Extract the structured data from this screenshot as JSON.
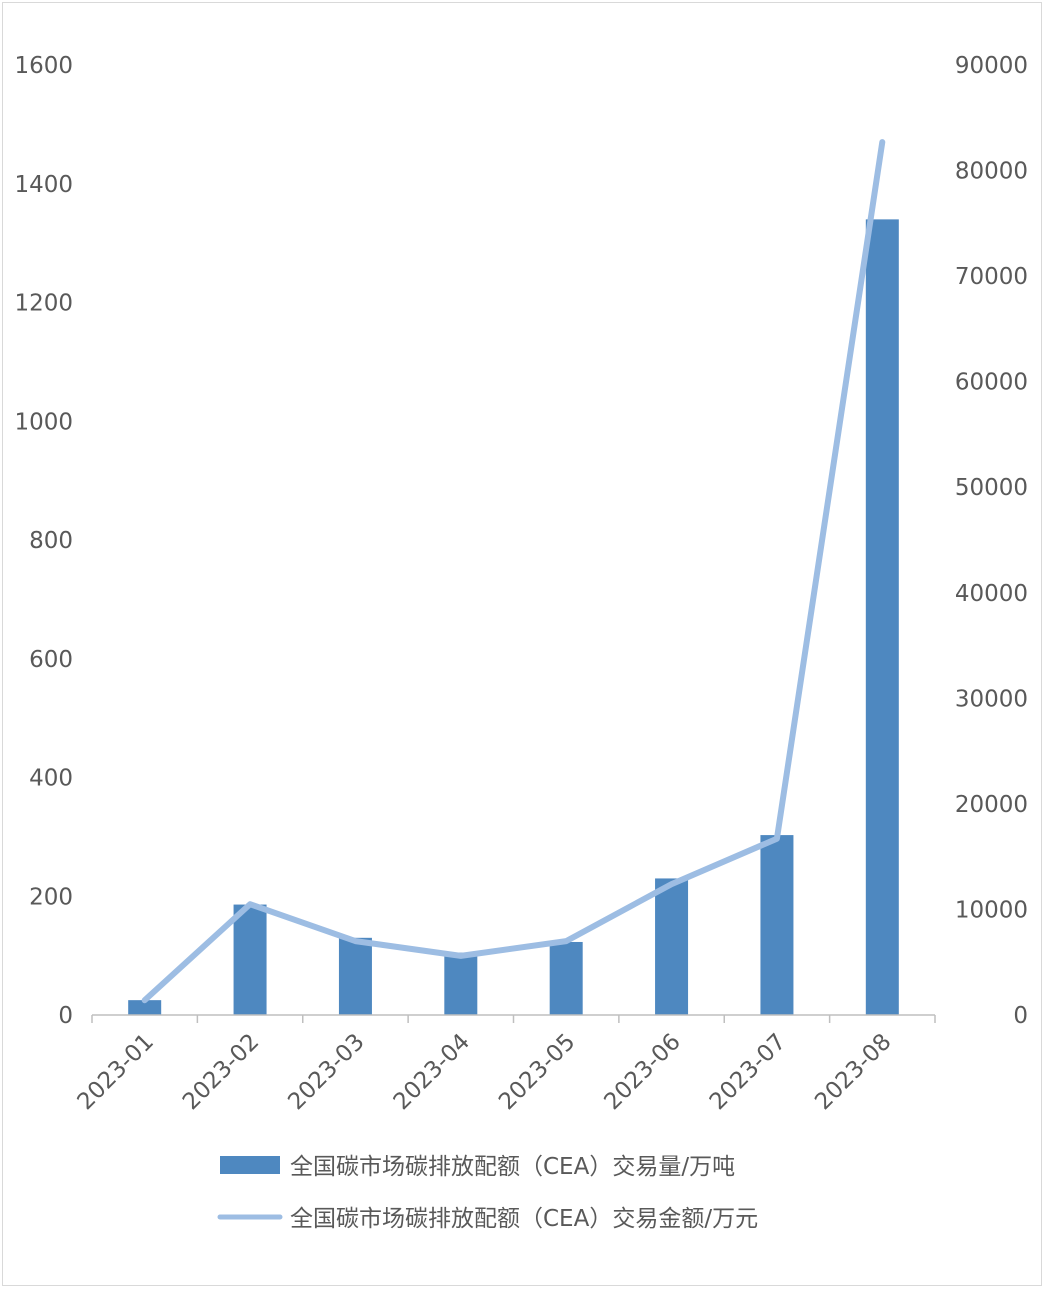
{
  "chart_data": {
    "type": "bar",
    "categories": [
      "2023-01",
      "2023-02",
      "2023-03",
      "2023-04",
      "2023-05",
      "2023-06",
      "2023-07",
      "2023-08"
    ],
    "series": [
      {
        "name": "全国碳市场碳排放配额（CEA）交易量/万吨",
        "type": "bar",
        "axis": "left",
        "color": "#4e88c0",
        "values": [
          25,
          186,
          130,
          105,
          123,
          230,
          303,
          1340
        ]
      },
      {
        "name": "全国碳市场碳排放配额（CEA）交易金额/万元",
        "type": "line",
        "axis": "right",
        "color": "#9dbde3",
        "values": [
          1400,
          10500,
          7000,
          5600,
          7000,
          12400,
          16700,
          82700
        ]
      }
    ],
    "y_left": {
      "min": 0,
      "max": 1600,
      "ticks": [
        "0",
        "200",
        "400",
        "600",
        "800",
        "1000",
        "1200",
        "1400",
        "1600"
      ]
    },
    "y_right": {
      "min": 0,
      "max": 90000,
      "ticks": [
        "0",
        "10000",
        "20000",
        "30000",
        "40000",
        "50000",
        "60000",
        "70000",
        "80000",
        "90000"
      ]
    },
    "grid": false,
    "legend": "bottom"
  }
}
